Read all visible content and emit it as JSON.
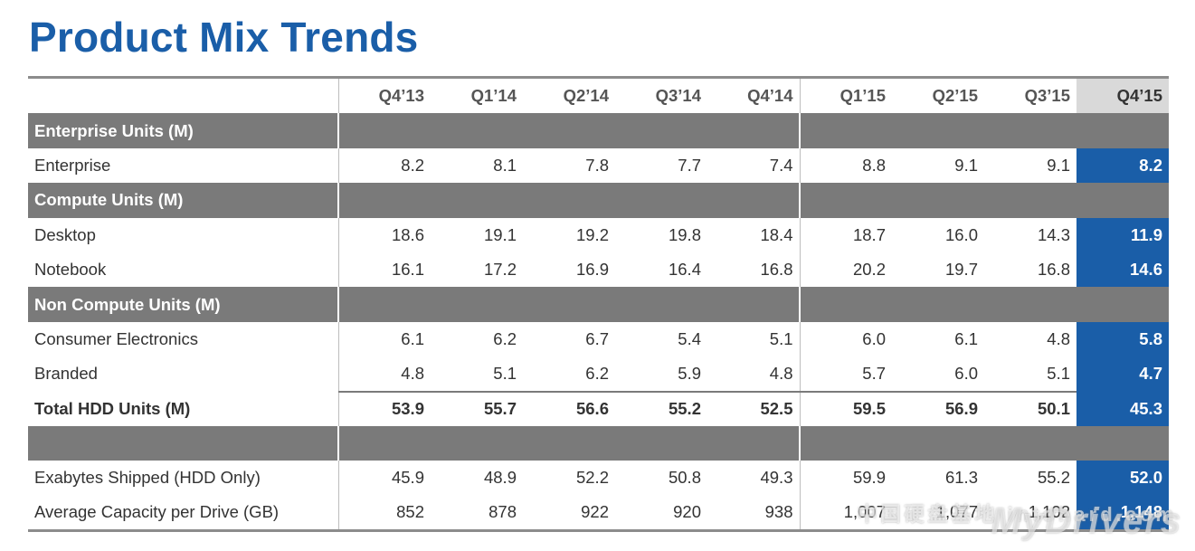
{
  "title": "Product Mix Trends",
  "columns": [
    "Q4’13",
    "Q1’14",
    "Q2’14",
    "Q3’14",
    "Q4’14",
    "Q1’15",
    "Q2’15",
    "Q3’15",
    "Q4’15"
  ],
  "sections": {
    "enterprise": "Enterprise Units (M)",
    "compute": "Compute Units (M)",
    "noncompute": "Non Compute Units (M)"
  },
  "rows": {
    "enterprise": {
      "label": "Enterprise",
      "values": [
        "8.2",
        "8.1",
        "7.8",
        "7.7",
        "7.4",
        "8.8",
        "9.1",
        "9.1",
        "8.2"
      ]
    },
    "desktop": {
      "label": "Desktop",
      "values": [
        "18.6",
        "19.1",
        "19.2",
        "19.8",
        "18.4",
        "18.7",
        "16.0",
        "14.3",
        "11.9"
      ]
    },
    "notebook": {
      "label": "Notebook",
      "values": [
        "16.1",
        "17.2",
        "16.9",
        "16.4",
        "16.8",
        "20.2",
        "19.7",
        "16.8",
        "14.6"
      ]
    },
    "consumer": {
      "label": "Consumer Electronics",
      "values": [
        "6.1",
        "6.2",
        "6.7",
        "5.4",
        "5.1",
        "6.0",
        "6.1",
        "4.8",
        "5.8"
      ]
    },
    "branded": {
      "label": "Branded",
      "values": [
        "4.8",
        "5.1",
        "6.2",
        "5.9",
        "4.8",
        "5.7",
        "6.0",
        "5.1",
        "4.7"
      ]
    },
    "total": {
      "label": "Total HDD Units (M)",
      "values": [
        "53.9",
        "55.7",
        "56.6",
        "55.2",
        "52.5",
        "59.5",
        "56.9",
        "50.1",
        "45.3"
      ]
    },
    "exabytes": {
      "label": "Exabytes Shipped (HDD Only)",
      "values": [
        "45.9",
        "48.9",
        "52.2",
        "50.8",
        "49.3",
        "59.9",
        "61.3",
        "55.2",
        "52.0"
      ]
    },
    "capacity": {
      "label": "Average Capacity per Drive (GB)",
      "values": [
        "852",
        "878",
        "922",
        "920",
        "938",
        "1,007",
        "1,077",
        "1,102",
        "1,148"
      ]
    }
  },
  "watermark": {
    "text": "MyDrivers",
    "text2": "中国硬盘基地 intohard.com"
  },
  "colors": {
    "accent": "#1a5ea8",
    "section_bg": "#7a7a7a",
    "highlight_header": "#d9d9d9"
  }
}
